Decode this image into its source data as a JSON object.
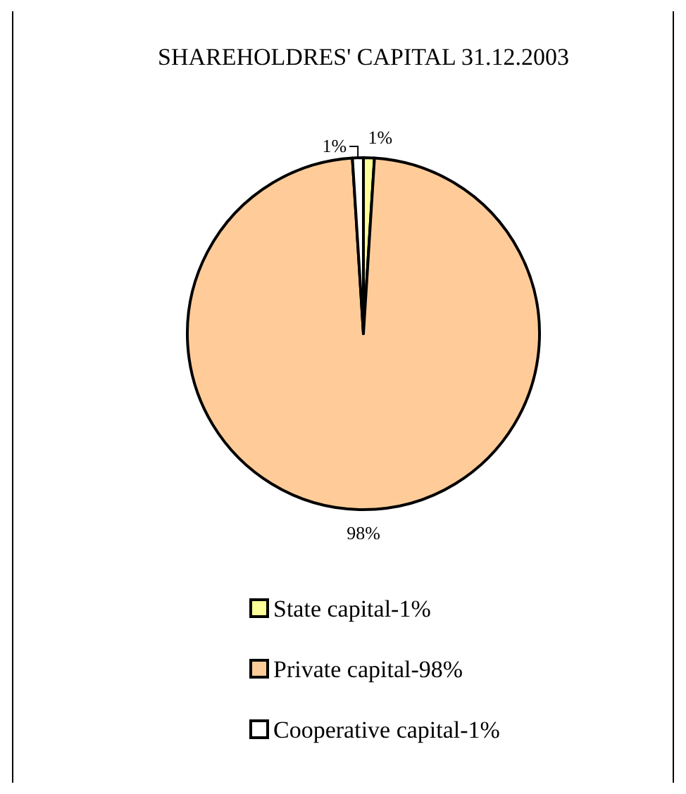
{
  "chart_data": {
    "type": "pie",
    "title": "SHAREHOLDRES' CAPITAL 31.12.2003",
    "categories": [
      "State capital-1%",
      "Private capital-98%",
      "Cooperative capital-1%"
    ],
    "values": [
      1,
      98,
      1
    ],
    "value_labels": [
      "1%",
      "98%",
      "1%"
    ],
    "colors": [
      "#ffff99",
      "#ffcc99",
      "#ffffff"
    ],
    "legend": "bottom"
  }
}
